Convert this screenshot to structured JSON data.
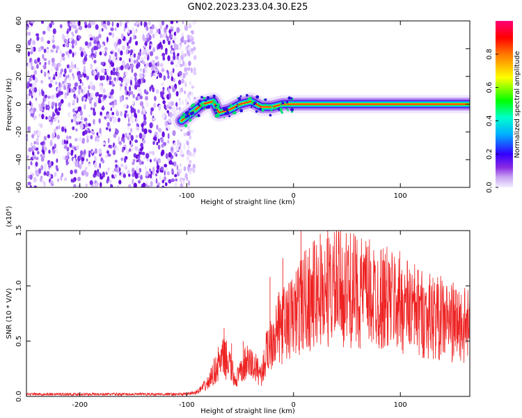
{
  "title": "GN02.2023.233.04.30.E25",
  "chart_data": [
    {
      "type": "heatmap",
      "xlabel": "Height of straight line (km)",
      "ylabel": "Frequency (Hz)",
      "xlim": [
        -250,
        165
      ],
      "ylim": [
        -60,
        60
      ],
      "xticks": [
        -200,
        -100,
        0,
        100
      ],
      "yticks": [
        60,
        40,
        20,
        0,
        -20,
        -40,
        -60
      ],
      "noise_region_x": [
        -250,
        -100
      ],
      "signal_track": [
        {
          "x": -105,
          "y": -12
        },
        {
          "x": -95,
          "y": -6
        },
        {
          "x": -85,
          "y": 0
        },
        {
          "x": -75,
          "y": 2
        },
        {
          "x": -70,
          "y": -6
        },
        {
          "x": -60,
          "y": -4
        },
        {
          "x": -50,
          "y": 0
        },
        {
          "x": -40,
          "y": 2
        },
        {
          "x": -30,
          "y": -2
        },
        {
          "x": -20,
          "y": -2
        },
        {
          "x": -10,
          "y": 0
        },
        {
          "x": 0,
          "y": 0
        },
        {
          "x": 165,
          "y": 0
        }
      ],
      "colorbar": {
        "label": "Normalized spectral amplitude",
        "range": [
          0,
          1
        ],
        "ticks": [
          "0.0",
          "0.2",
          "0.4",
          "0.6",
          "0.8"
        ],
        "colormap": "rainbow"
      }
    },
    {
      "type": "line",
      "xlabel": "Height of straight line (km)",
      "ylabel": "SNR (10 * V/V)",
      "y_multiplier": "(x10⁴)",
      "xlim": [
        -250,
        165
      ],
      "ylim": [
        0,
        1.5
      ],
      "xticks": [
        -200,
        -100,
        0,
        100
      ],
      "yticks": [
        "0.0",
        "0.5",
        "1.0",
        "1.5"
      ],
      "line_color": "#ee2222",
      "envelope": [
        {
          "x": -250,
          "y": 0.02
        },
        {
          "x": -100,
          "y": 0.02
        },
        {
          "x": -90,
          "y": 0.04
        },
        {
          "x": -80,
          "y": 0.12
        },
        {
          "x": -70,
          "y": 0.3
        },
        {
          "x": -65,
          "y": 0.35
        },
        {
          "x": -60,
          "y": 0.3
        },
        {
          "x": -55,
          "y": 0.15
        },
        {
          "x": -50,
          "y": 0.2
        },
        {
          "x": -45,
          "y": 0.3
        },
        {
          "x": -40,
          "y": 0.3
        },
        {
          "x": -35,
          "y": 0.25
        },
        {
          "x": -30,
          "y": 0.2
        },
        {
          "x": -25,
          "y": 0.4
        },
        {
          "x": -20,
          "y": 0.55
        },
        {
          "x": -10,
          "y": 0.65
        },
        {
          "x": 0,
          "y": 0.72
        },
        {
          "x": 10,
          "y": 0.88
        },
        {
          "x": 20,
          "y": 0.92
        },
        {
          "x": 40,
          "y": 0.98
        },
        {
          "x": 60,
          "y": 0.95
        },
        {
          "x": 80,
          "y": 0.9
        },
        {
          "x": 100,
          "y": 0.85
        },
        {
          "x": 120,
          "y": 0.75
        },
        {
          "x": 140,
          "y": 0.7
        },
        {
          "x": 165,
          "y": 0.62
        }
      ],
      "spikes": [
        {
          "x": -65,
          "y": 0.62
        },
        {
          "x": -58,
          "y": 0.48
        },
        {
          "x": -47,
          "y": 0.5
        },
        {
          "x": -22,
          "y": 1.08
        },
        {
          "x": -10,
          "y": 1.25
        },
        {
          "x": 7,
          "y": 1.55
        },
        {
          "x": 25,
          "y": 1.47
        },
        {
          "x": 32,
          "y": 1.52
        },
        {
          "x": 55,
          "y": 1.3
        },
        {
          "x": 85,
          "y": 1.18
        },
        {
          "x": 113,
          "y": 1.05
        },
        {
          "x": 150,
          "y": 0.85
        }
      ]
    }
  ]
}
